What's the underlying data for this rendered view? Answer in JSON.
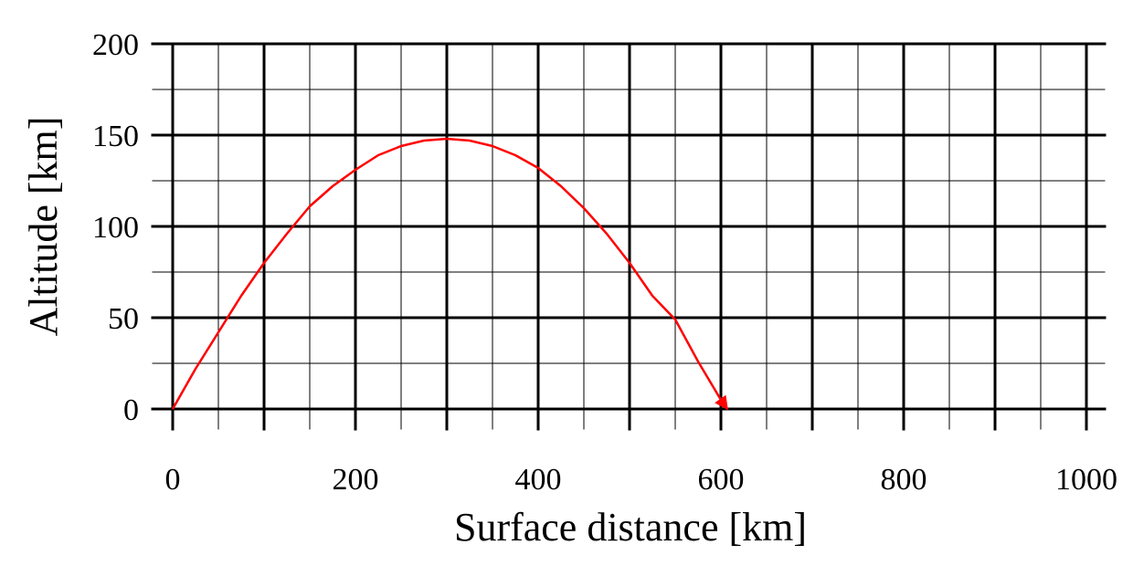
{
  "chart_data": {
    "type": "line",
    "title": "",
    "xlabel": "Surface distance [km]",
    "ylabel": "Altitude [km]",
    "xlim": [
      0,
      1020
    ],
    "ylim": [
      0,
      200
    ],
    "x_ticks": [
      0,
      200,
      400,
      600,
      800,
      1000
    ],
    "x_tick_labels": [
      "0",
      "200",
      "400",
      "600",
      "800",
      "1000"
    ],
    "y_ticks": [
      0,
      50,
      100,
      150,
      200
    ],
    "y_tick_labels": [
      "0",
      "50",
      "100",
      "150",
      "200"
    ],
    "grid": true,
    "major_grid_x": [
      0,
      100,
      200,
      300,
      400,
      500,
      600,
      700,
      800,
      900,
      1000
    ],
    "minor_grid_x": [
      50,
      150,
      250,
      350,
      450,
      550,
      650,
      750,
      850,
      950
    ],
    "major_grid_y": [
      0,
      50,
      100,
      150,
      200
    ],
    "minor_grid_y": [
      25,
      75,
      125,
      175
    ],
    "legend": "none",
    "series": [
      {
        "color": "#ff0000",
        "end_marker": "arrow",
        "x": [
          0,
          25,
          50,
          75,
          100,
          125,
          150,
          175,
          200,
          225,
          250,
          275,
          300,
          325,
          350,
          375,
          400,
          425,
          450,
          475,
          500,
          525,
          550,
          575,
          600,
          607
        ],
        "y": [
          0,
          22,
          42,
          62,
          80,
          96,
          111,
          122,
          131,
          139,
          144,
          147,
          148,
          147,
          144,
          139,
          132,
          122,
          110,
          96,
          80,
          62,
          49,
          26,
          5,
          0
        ]
      }
    ]
  }
}
